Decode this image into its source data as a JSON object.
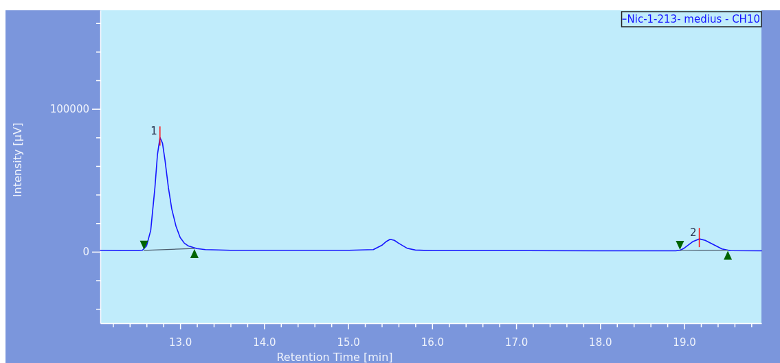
{
  "chart_data": {
    "type": "line",
    "xlabel": "Retention Time [min]",
    "ylabel": "Intensity [µV]",
    "xlim": [
      12.05,
      19.92
    ],
    "ylim": [
      -50000,
      169000
    ],
    "xticks": [
      {
        "value": 12.2,
        "label": null
      },
      {
        "value": 12.4,
        "label": null
      },
      {
        "value": 12.6,
        "label": null
      },
      {
        "value": 12.8,
        "label": null
      },
      {
        "value": 13,
        "label": "13.0"
      },
      {
        "value": 13.2,
        "label": null
      },
      {
        "value": 13.4,
        "label": null
      },
      {
        "value": 13.6,
        "label": null
      },
      {
        "value": 13.8,
        "label": null
      },
      {
        "value": 14,
        "label": "14.0"
      },
      {
        "value": 14.2,
        "label": null
      },
      {
        "value": 14.4,
        "label": null
      },
      {
        "value": 14.6,
        "label": null
      },
      {
        "value": 14.8,
        "label": null
      },
      {
        "value": 15,
        "label": "15.0"
      },
      {
        "value": 15.2,
        "label": null
      },
      {
        "value": 15.4,
        "label": null
      },
      {
        "value": 15.6,
        "label": null
      },
      {
        "value": 15.8,
        "label": null
      },
      {
        "value": 16,
        "label": "16.0"
      },
      {
        "value": 16.2,
        "label": null
      },
      {
        "value": 16.4,
        "label": null
      },
      {
        "value": 16.6,
        "label": null
      },
      {
        "value": 16.8,
        "label": null
      },
      {
        "value": 17,
        "label": "17.0"
      },
      {
        "value": 17.2,
        "label": null
      },
      {
        "value": 17.4,
        "label": null
      },
      {
        "value": 17.6,
        "label": null
      },
      {
        "value": 17.8,
        "label": null
      },
      {
        "value": 18,
        "label": "18.0"
      },
      {
        "value": 18.2,
        "label": null
      },
      {
        "value": 18.4,
        "label": null
      },
      {
        "value": 18.6,
        "label": null
      },
      {
        "value": 18.8,
        "label": null
      },
      {
        "value": 19,
        "label": "19.0"
      },
      {
        "value": 19.2,
        "label": null
      },
      {
        "value": 19.4,
        "label": null
      },
      {
        "value": 19.6,
        "label": null
      },
      {
        "value": 19.8,
        "label": null
      }
    ],
    "yticks": [
      {
        "value": -40000,
        "label": null
      },
      {
        "value": -20000,
        "label": null
      },
      0,
      {
        "value": 20000,
        "label": null
      },
      {
        "value": 40000,
        "label": null
      },
      {
        "value": 60000,
        "label": null
      },
      {
        "value": 80000,
        "label": null
      },
      100000,
      {
        "value": 120000,
        "label": null
      },
      {
        "value": 140000,
        "label": null
      },
      {
        "value": 160000,
        "label": null
      }
    ],
    "grid": false,
    "legend": "top right",
    "marker": "none",
    "line_style": "solid",
    "series": [
      {
        "name": "Nic-1-213- medius - CH10",
        "color": "#1515ff",
        "x": [
          12.05,
          12.3,
          12.5,
          12.55,
          12.6,
          12.65,
          12.7,
          12.73,
          12.76,
          12.79,
          12.82,
          12.86,
          12.9,
          12.95,
          13.0,
          13.05,
          13.1,
          13.2,
          13.3,
          13.6,
          14.0,
          15.0,
          15.3,
          15.4,
          15.45,
          15.5,
          15.55,
          15.6,
          15.7,
          15.8,
          16.0,
          17.0,
          18.0,
          18.9,
          18.95,
          19.0,
          19.1,
          19.18,
          19.25,
          19.35,
          19.45,
          19.55,
          19.92
        ],
        "values": [
          1000,
          800,
          800,
          1000,
          4000,
          15000,
          45000,
          68000,
          80000,
          76000,
          64000,
          45000,
          30000,
          18000,
          10000,
          6000,
          4000,
          2200,
          1500,
          1000,
          1000,
          1000,
          1500,
          4500,
          7000,
          8700,
          8000,
          6000,
          2500,
          1200,
          800,
          800,
          700,
          700,
          1000,
          2500,
          7000,
          9000,
          8000,
          5000,
          2000,
          800,
          700
        ]
      },
      {
        "type": "line",
        "color": "#4a5a6a",
        "x": [
          12.57,
          13.17
        ],
        "values": [
          1000,
          2300
        ]
      },
      {
        "type": "line",
        "color": "#4a5a6a",
        "x": [
          18.95,
          19.52
        ],
        "values": [
          900,
          1100
        ]
      }
    ],
    "annotations": [
      {
        "text": "1",
        "x": 12.76,
        "y": 80000
      },
      {
        "text": "2",
        "x": 19.18,
        "y": 9000
      }
    ]
  }
}
